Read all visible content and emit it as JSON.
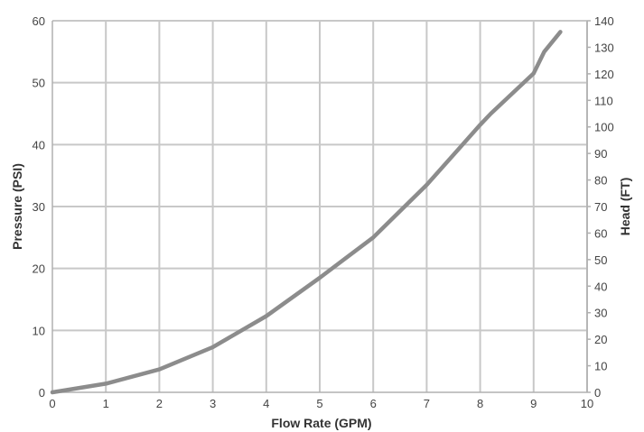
{
  "chart_data": {
    "type": "line",
    "title": "",
    "xlabel": "Flow Rate (GPM)",
    "ylabel": "Pressure (PSI)",
    "y2label": "Head (FT)",
    "xlim": [
      0,
      10
    ],
    "ylim": [
      0,
      60
    ],
    "y2lim": [
      0,
      140
    ],
    "x_ticks": [
      "0",
      "1",
      "2",
      "3",
      "4",
      "5",
      "6",
      "7",
      "8",
      "9",
      "10"
    ],
    "y_ticks": [
      "0",
      "10",
      "20",
      "30",
      "40",
      "50",
      "60"
    ],
    "y2_ticks": [
      "0",
      "10",
      "20",
      "30",
      "40",
      "50",
      "60",
      "70",
      "80",
      "90",
      "100",
      "110",
      "120",
      "130",
      "140"
    ],
    "grid": true,
    "legend": "none",
    "series": [
      {
        "color": "#8c8c8c",
        "x": [
          0,
          1,
          2,
          3,
          4,
          5,
          6,
          7,
          8,
          8.2,
          9,
          9.2,
          9.5
        ],
        "values": [
          0,
          1.4,
          3.7,
          7.3,
          12.3,
          18.5,
          25.0,
          33.5,
          43.2,
          45.0,
          51.5,
          55.0,
          58.2
        ]
      }
    ]
  }
}
